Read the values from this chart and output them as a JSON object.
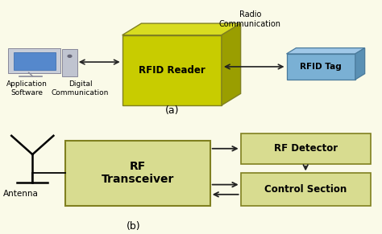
{
  "bg_color": "#fafae8",
  "rfid_reader_front_color": "#c8cc00",
  "rfid_reader_top_color": "#d8dc20",
  "rfid_reader_right_color": "#9a9e00",
  "rfid_tag_front_color": "#7ab0d4",
  "rfid_tag_top_color": "#a0c8e8",
  "rfid_tag_right_color": "#5a90b4",
  "rf_transceiver_color": "#d8dc90",
  "rf_detector_color": "#d8dc90",
  "control_section_color": "#d8dc90",
  "box_edge_color": "#808020",
  "blue_box_edge": "#4a7a9b",
  "green_box_edge": "#808020",
  "arrow_color": "#222222",
  "label_a": "(a)",
  "label_b": "(b)",
  "rfid_reader_label": "RFID Reader",
  "rfid_tag_label": "RFID Tag",
  "rf_transceiver_label": "RF\nTransceiver",
  "rf_detector_label": "RF Detector",
  "control_section_label": "Control Section",
  "radio_comm_label": "Radio\nCommunication",
  "digital_comm_label": "Digital\nCommunication",
  "app_software_label": "Application\nSoftware",
  "antenna_label": "Antenna"
}
